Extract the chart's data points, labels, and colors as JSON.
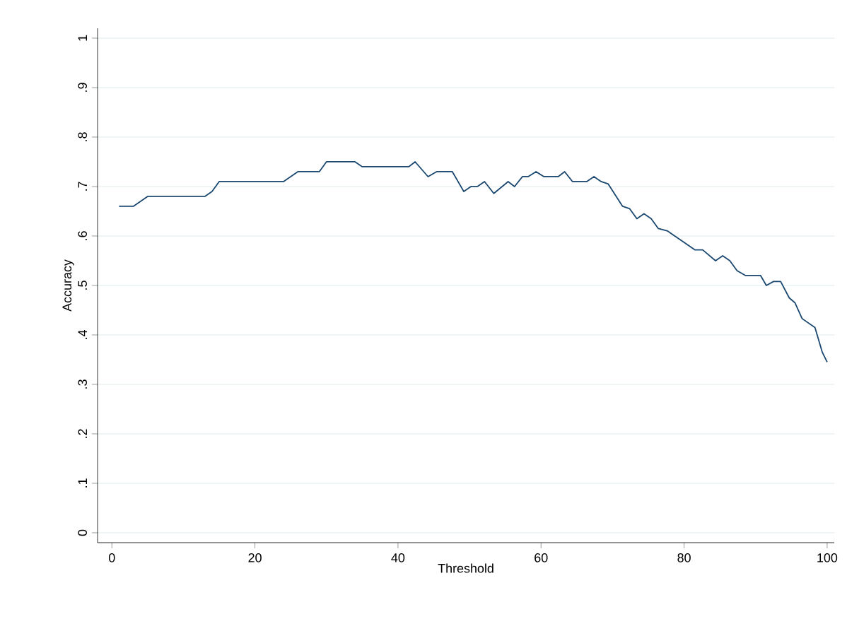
{
  "chart_data": {
    "type": "line",
    "xlabel": "Threshold",
    "ylabel": "Accuracy",
    "x": [
      1,
      3,
      5,
      13,
      14,
      15,
      24,
      26,
      29,
      30,
      34,
      35,
      41.5,
      42.4,
      44.2,
      45.4,
      47.6,
      49.2,
      50.2,
      51.1,
      52.1,
      53.4,
      55.4,
      56.3,
      57.4,
      58.2,
      59.3,
      60.4,
      62.4,
      63.3,
      64.4,
      66.4,
      67.4,
      68.4,
      69.4,
      71.4,
      72.4,
      73.4,
      74.4,
      75.4,
      76.4,
      77.7,
      78.7,
      80.0,
      81.5,
      82.6,
      84.4,
      85.4,
      86.4,
      87.4,
      88.6,
      90.7,
      91.5,
      92.5,
      93.5,
      94.7,
      95.5,
      96.5,
      98.3,
      99.3,
      100
    ],
    "series": [
      {
        "color": "#1a476f",
        "values": [
          0.66,
          0.66,
          0.68,
          0.68,
          0.69,
          0.71,
          0.71,
          0.73,
          0.73,
          0.75,
          0.75,
          0.74,
          0.74,
          0.75,
          0.72,
          0.73,
          0.73,
          0.69,
          0.7,
          0.7,
          0.71,
          0.686,
          0.71,
          0.7,
          0.72,
          0.72,
          0.73,
          0.72,
          0.72,
          0.73,
          0.71,
          0.71,
          0.72,
          0.71,
          0.705,
          0.66,
          0.655,
          0.635,
          0.645,
          0.635,
          0.615,
          0.61,
          0.6,
          0.587,
          0.572,
          0.572,
          0.55,
          0.56,
          0.55,
          0.53,
          0.52,
          0.52,
          0.5,
          0.508,
          0.508,
          0.475,
          0.465,
          0.433,
          0.415,
          0.366,
          0.345
        ]
      }
    ],
    "xlim": [
      -2,
      101
    ],
    "ylim": [
      -0.02,
      1.02
    ],
    "xticks": [
      0,
      20,
      40,
      60,
      80,
      100
    ],
    "yticks": [
      0,
      {
        "value": 0.1,
        "label": ".1"
      },
      {
        "value": 0.2,
        "label": ".2"
      },
      {
        "value": 0.3,
        "label": ".3"
      },
      {
        "value": 0.4,
        "label": ".4"
      },
      {
        "value": 0.5,
        "label": ".5"
      },
      {
        "value": 0.6,
        "label": ".6"
      },
      {
        "value": 0.7,
        "label": ".7"
      },
      {
        "value": 0.8,
        "label": ".8"
      },
      {
        "value": 0.9,
        "label": ".9"
      },
      1
    ],
    "grid": "y",
    "marker": "none",
    "line_style": "solid"
  }
}
